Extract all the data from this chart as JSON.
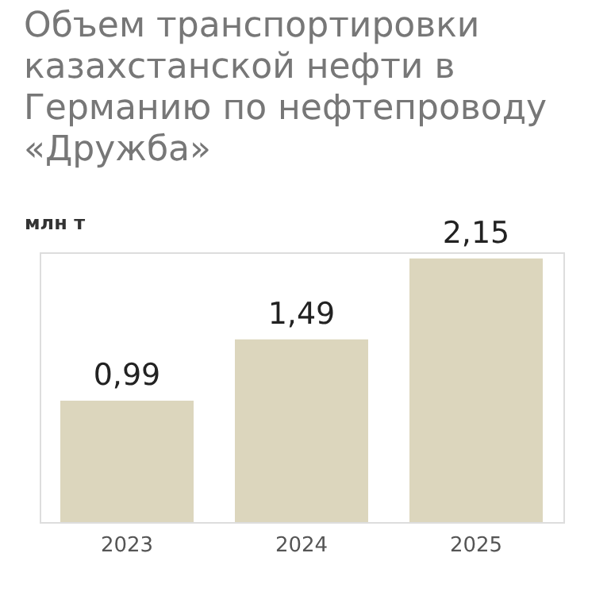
{
  "chart_data": {
    "type": "bar",
    "title": "Объем транспортировки казахстанской нефти в Германию по нефтепроводу «Дружба»",
    "ylabel": "млн т",
    "categories": [
      "2023",
      "2024",
      "2025"
    ],
    "values": [
      0.99,
      1.49,
      2.15
    ],
    "value_labels": [
      "0,99",
      "1,49",
      "2,15"
    ],
    "color": "#dcd6bd",
    "grid": false
  }
}
